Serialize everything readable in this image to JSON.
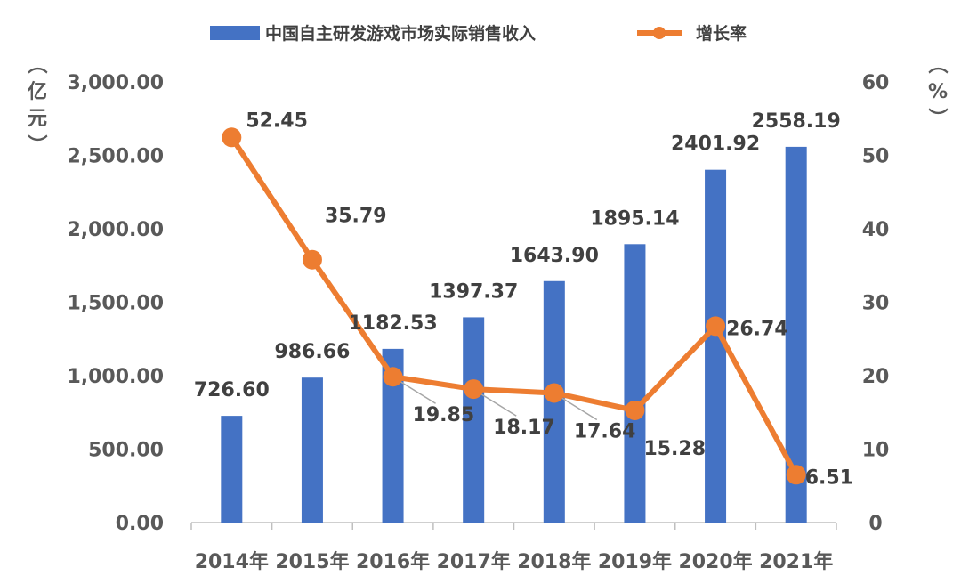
{
  "chart_data": {
    "type": "bar",
    "categories": [
      "2014年",
      "2015年",
      "2016年",
      "2017年",
      "2018年",
      "2019年",
      "2020年",
      "2021年"
    ],
    "series": [
      {
        "name": "中国自主研发游戏市场实际销售收入",
        "type": "bar",
        "axis": "left",
        "values": [
          726.6,
          986.66,
          1182.53,
          1397.37,
          1643.9,
          1895.14,
          2401.92,
          2558.19
        ],
        "labels": [
          "726.60",
          "986.66",
          "1182.53",
          "1397.37",
          "1643.90",
          "1895.14",
          "2401.92",
          "2558.19"
        ],
        "color": "#4472C4"
      },
      {
        "name": "增长率",
        "type": "line",
        "axis": "right",
        "values": [
          52.45,
          35.79,
          19.85,
          18.17,
          17.64,
          15.28,
          26.74,
          6.51
        ],
        "labels": [
          "52.45",
          "35.79",
          "19.85",
          "18.17",
          "17.64",
          "15.28",
          "26.74",
          "6.51"
        ],
        "color": "#ED7D31"
      }
    ],
    "y_left": {
      "unit_label": "（亿元）",
      "range": [
        0,
        3000
      ],
      "ticks": [
        "0.00",
        "500.00",
        "1,000.00",
        "1,500.00",
        "2,000.00",
        "2,500.00",
        "3,000.00"
      ]
    },
    "y_right": {
      "unit_label": "（%）",
      "range": [
        0,
        60
      ],
      "ticks": [
        "0",
        "10",
        "20",
        "30",
        "40",
        "50",
        "60"
      ]
    },
    "legend_position": "top",
    "grid": false
  }
}
